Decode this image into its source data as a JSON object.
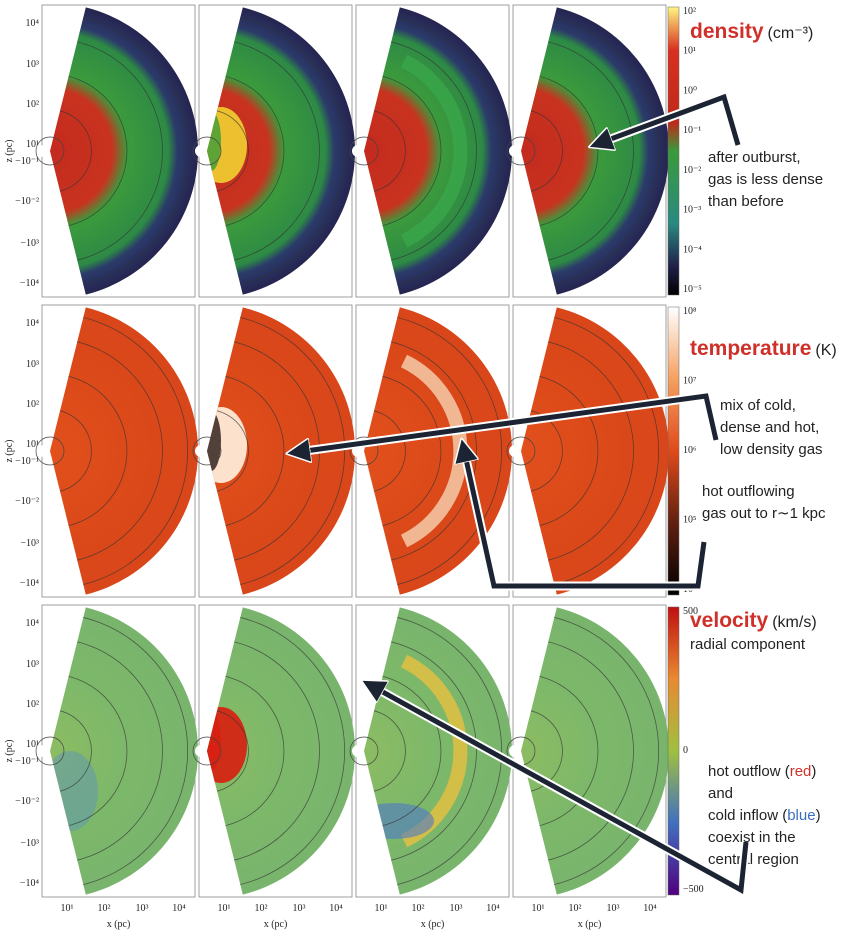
{
  "y_axis": {
    "label": "z (pc)",
    "ticks": [
      "10⁴",
      "10³",
      "10²",
      "10¹",
      "−10⁻¹",
      "−10⁻²",
      "−10³",
      "−10⁴"
    ]
  },
  "x_axis": {
    "label": "x (pc)",
    "ticks": [
      "10¹",
      "10²",
      "10³",
      "10⁴"
    ]
  },
  "rows": [
    {
      "name": "density",
      "unit": "(cm⁻³)",
      "colorbar_ticks": [
        "10²",
        "10¹",
        "10⁰",
        "10⁻¹",
        "10⁻²",
        "10⁻³",
        "10⁻⁴",
        "10⁻⁵"
      ],
      "notes": [
        [
          [
            "after outburst,"
          ],
          [
            "gas is less dense"
          ],
          [
            "than before"
          ]
        ]
      ]
    },
    {
      "name": "temperature",
      "unit": "(K)",
      "colorbar_ticks": [
        "10⁸",
        "10⁷",
        "10⁶",
        "10⁵",
        "10⁴"
      ],
      "notes": [
        [
          [
            "mix of cold,"
          ],
          [
            "dense and hot,"
          ],
          [
            "low density gas"
          ]
        ],
        [
          [
            "hot outflowing"
          ],
          [
            "gas out to r∼1 kpc"
          ]
        ]
      ]
    },
    {
      "name": "velocity",
      "unit": "(km/s)",
      "subtitle": "radial component",
      "colorbar_ticks": [
        "500",
        "0",
        "−500"
      ],
      "notes": [
        [
          [
            "hot outflow (",
            "red",
            ")"
          ],
          [
            "and"
          ],
          [
            "cold inflow (",
            "blue",
            ")"
          ],
          [
            "coexist in the"
          ],
          [
            "central region"
          ]
        ]
      ]
    }
  ]
}
